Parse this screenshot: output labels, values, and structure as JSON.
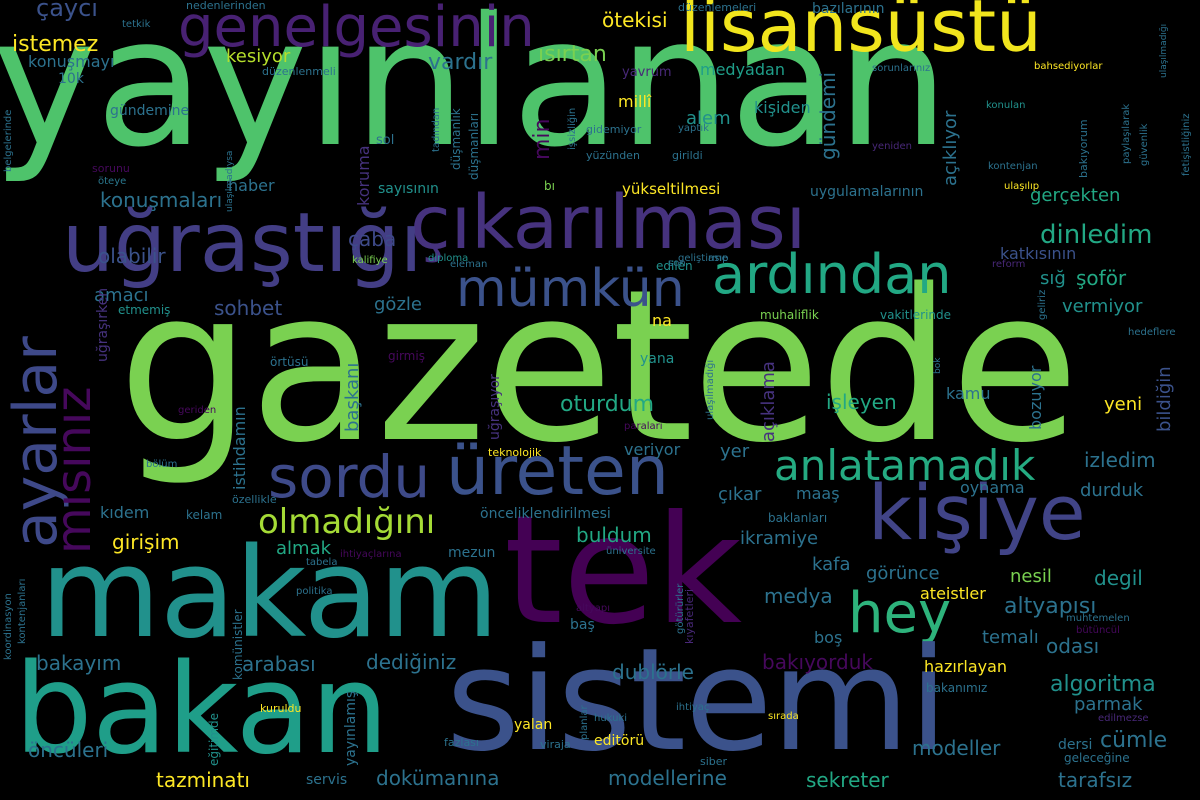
{
  "background": "#000000",
  "words": [
    {
      "text": "yayınlanan",
      "color": "#4ec36b"
    },
    {
      "text": "gazetede",
      "color": "#7ad151"
    },
    {
      "text": "lisansüstü",
      "color": "#f1e51d"
    },
    {
      "text": "genelgesinin",
      "color": "#482173"
    },
    {
      "text": "çıkarılması",
      "color": "#46327e"
    },
    {
      "text": "uğraştığı",
      "color": "#433e85"
    },
    {
      "text": "mümkün",
      "color": "#3b528b"
    },
    {
      "text": "ardından",
      "color": "#22a884"
    },
    {
      "text": "kişiye",
      "color": "#414487"
    },
    {
      "text": "sordu",
      "color": "#3e4a89"
    },
    {
      "text": "üreten",
      "color": "#3b528b"
    },
    {
      "text": "anlatamadık",
      "color": "#25ab82"
    },
    {
      "text": "olmadığını",
      "color": "#a5db36"
    },
    {
      "text": "makam",
      "color": "#21918c"
    },
    {
      "text": "tek",
      "color": "#440154"
    },
    {
      "text": "hey",
      "color": "#2eb37c"
    },
    {
      "text": "bakan",
      "color": "#1f9e89"
    },
    {
      "text": "sistemi",
      "color": "#3b528b"
    },
    {
      "text": "ayarlar",
      "color": "#3e4989"
    },
    {
      "text": "mısınız",
      "color": "#46085c"
    },
    {
      "text": "çaycı",
      "color": "#3b528b"
    },
    {
      "text": "istemez",
      "color": "#fde725"
    },
    {
      "text": "konuşmayı",
      "color": "#2c728e"
    },
    {
      "text": "10k",
      "color": "#2c728e"
    },
    {
      "text": "gündemine",
      "color": "#2c728e"
    },
    {
      "text": "ulaşılmadıysa",
      "color": "#2c728e"
    },
    {
      "text": "sorunu",
      "color": "#46085c"
    },
    {
      "text": "öteye",
      "color": "#2a788e"
    },
    {
      "text": "haber",
      "color": "#2c728e"
    },
    {
      "text": "konuşmaları",
      "color": "#2c728e"
    },
    {
      "text": "çaba",
      "color": "#3e4a89"
    },
    {
      "text": "olabilir",
      "color": "#3b528b"
    },
    {
      "text": "amacı",
      "color": "#2c728e"
    },
    {
      "text": "sohbet",
      "color": "#3b528b"
    },
    {
      "text": "gözle",
      "color": "#2c728e"
    },
    {
      "text": "etmemiş",
      "color": "#21918c"
    },
    {
      "text": "kesiyor",
      "color": "#b5de2b"
    },
    {
      "text": "vardır",
      "color": "#2c728e"
    },
    {
      "text": "ısırtan",
      "color": "#7ad151"
    },
    {
      "text": "ötekisi",
      "color": "#fde725"
    },
    {
      "text": "yavrum",
      "color": "#482878"
    },
    {
      "text": "medyadan",
      "color": "#1f9e89"
    },
    {
      "text": "millî",
      "color": "#fde725"
    },
    {
      "text": "alem",
      "color": "#21918c"
    },
    {
      "text": "kişiden",
      "color": "#21918c"
    },
    {
      "text": "gündemi",
      "color": "#2c728e"
    },
    {
      "text": "açıklıyor",
      "color": "#2c728e"
    },
    {
      "text": "bazılarının",
      "color": "#2c728e"
    },
    {
      "text": "sorunlarınız",
      "color": "#2c728e"
    },
    {
      "text": "bahsediyorlar",
      "color": "#fde725"
    },
    {
      "text": "ulaşılmadığı",
      "color": "#2c728e"
    },
    {
      "text": "fetişistliğiniz",
      "color": "#2c728e"
    },
    {
      "text": "konulan",
      "color": "#21918c"
    },
    {
      "text": "paylaşılarak",
      "color": "#2c728e"
    },
    {
      "text": "güvenlik",
      "color": "#2c728e"
    },
    {
      "text": "bakıyorum",
      "color": "#2c728e"
    },
    {
      "text": "yeniden",
      "color": "#482878"
    },
    {
      "text": "kontenjan",
      "color": "#2c728e"
    },
    {
      "text": "ulaşılıp",
      "color": "#fde725"
    },
    {
      "text": "reform",
      "color": "#482878"
    },
    {
      "text": "düzenlemeleri",
      "color": "#2c728e"
    },
    {
      "text": "nedenlerinden",
      "color": "#2c728e"
    },
    {
      "text": "tetkik",
      "color": "#2c728e"
    },
    {
      "text": "düzenlenmeli",
      "color": "#2c728e"
    },
    {
      "text": "tadından",
      "color": "#2c728e"
    },
    {
      "text": "düşmanlık",
      "color": "#2c728e"
    },
    {
      "text": "düşmanları",
      "color": "#2c728e"
    },
    {
      "text": "işsizliğin",
      "color": "#2c728e"
    },
    {
      "text": "gidemiyor",
      "color": "#2c728e"
    },
    {
      "text": "yaptık",
      "color": "#2c728e"
    },
    {
      "text": "yüzünden",
      "color": "#2c728e"
    },
    {
      "text": "girildi",
      "color": "#2c728e"
    },
    {
      "text": "min",
      "color": "#46085c"
    },
    {
      "text": "sol",
      "color": "#2c728e"
    },
    {
      "text": "koruma",
      "color": "#46327e"
    },
    {
      "text": "sayısının",
      "color": "#21918c"
    },
    {
      "text": "bı",
      "color": "#7ad151"
    },
    {
      "text": "yükseltilmesi",
      "color": "#fde725"
    },
    {
      "text": "uygulamalarının",
      "color": "#2c728e"
    },
    {
      "text": "gerçekten",
      "color": "#22a884"
    },
    {
      "text": "dinledim",
      "color": "#22a884"
    },
    {
      "text": "katkısının",
      "color": "#3b528b"
    },
    {
      "text": "sığ",
      "color": "#21918c"
    },
    {
      "text": "şoför",
      "color": "#22a884"
    },
    {
      "text": "vermiyor",
      "color": "#21918c"
    },
    {
      "text": "bildiğin",
      "color": "#3b528b"
    },
    {
      "text": "muhaliflik",
      "color": "#7ad151"
    },
    {
      "text": "vakitlerinde",
      "color": "#21918c"
    },
    {
      "text": "geliriz",
      "color": "#2c728e"
    },
    {
      "text": "geliştirme",
      "color": "#2c728e"
    },
    {
      "text": "edilen",
      "color": "#21918c"
    },
    {
      "text": "eleman",
      "color": "#2c728e"
    },
    {
      "text": "diploma",
      "color": "#21918c"
    },
    {
      "text": "son",
      "color": "#2c728e"
    },
    {
      "text": "asıp",
      "color": "#2c728e"
    },
    {
      "text": "kalifiye",
      "color": "#7ad151"
    },
    {
      "text": "na",
      "color": "#fde725"
    },
    {
      "text": "başkanı",
      "color": "#2c728e"
    },
    {
      "text": "örtüsü",
      "color": "#2c728e"
    },
    {
      "text": "girmiş",
      "color": "#46085c"
    },
    {
      "text": "uğraşırken",
      "color": "#46327e"
    },
    {
      "text": "uğraşıyor",
      "color": "#46327e"
    },
    {
      "text": "istihdamın",
      "color": "#2c728e"
    },
    {
      "text": "özellikle",
      "color": "#2c728e"
    },
    {
      "text": "geriden",
      "color": "#46085c"
    },
    {
      "text": "bölüm",
      "color": "#2c728e"
    },
    {
      "text": "teknolojik",
      "color": "#fde725"
    },
    {
      "text": "paraları",
      "color": "#46085c"
    },
    {
      "text": "ulaşılmadığı",
      "color": "#2c728e"
    },
    {
      "text": "yana",
      "color": "#21918c"
    },
    {
      "text": "açıklama",
      "color": "#46327e"
    },
    {
      "text": "oturdum",
      "color": "#22a884"
    },
    {
      "text": "veriyor",
      "color": "#2c728e"
    },
    {
      "text": "yer",
      "color": "#2c728e"
    },
    {
      "text": "işleyen",
      "color": "#22a884"
    },
    {
      "text": "kamu",
      "color": "#2c728e"
    },
    {
      "text": "bok",
      "color": "#2c728e"
    },
    {
      "text": "bozuyor",
      "color": "#2c728e"
    },
    {
      "text": "yeni",
      "color": "#fde725"
    },
    {
      "text": "hedeflere",
      "color": "#2c728e"
    },
    {
      "text": "izledim",
      "color": "#2c728e"
    },
    {
      "text": "oynama",
      "color": "#2c728e"
    },
    {
      "text": "durduk",
      "color": "#2c728e"
    },
    {
      "text": "kıdem",
      "color": "#2c728e"
    },
    {
      "text": "kelam",
      "color": "#2c728e"
    },
    {
      "text": "girişim",
      "color": "#fde725"
    },
    {
      "text": "almak",
      "color": "#22a884"
    },
    {
      "text": "önceliklendirilmesi",
      "color": "#2c728e"
    },
    {
      "text": "buldum",
      "color": "#22a884"
    },
    {
      "text": "ikramiye",
      "color": "#2c728e"
    },
    {
      "text": "maaş",
      "color": "#2c728e"
    },
    {
      "text": "çıkar",
      "color": "#2c728e"
    },
    {
      "text": "baklanları",
      "color": "#2c728e"
    },
    {
      "text": "kafa",
      "color": "#2c728e"
    },
    {
      "text": "görünce",
      "color": "#2c728e"
    },
    {
      "text": "nesil",
      "color": "#7ad151"
    },
    {
      "text": "degil",
      "color": "#21918c"
    },
    {
      "text": "altyapısı",
      "color": "#2c728e"
    },
    {
      "text": "ihtiyaçlarına",
      "color": "#46085c"
    },
    {
      "text": "mezun",
      "color": "#2c728e"
    },
    {
      "text": "üniversite",
      "color": "#2c728e"
    },
    {
      "text": "kıyafetleri",
      "color": "#482878"
    },
    {
      "text": "tabela",
      "color": "#2c728e"
    },
    {
      "text": "koordinasyon",
      "color": "#2c728e"
    },
    {
      "text": "kontenjanları",
      "color": "#2c728e"
    },
    {
      "text": "politika",
      "color": "#2c728e"
    },
    {
      "text": "komünistler",
      "color": "#2c728e"
    },
    {
      "text": "altyapı",
      "color": "#46085c"
    },
    {
      "text": "medya",
      "color": "#2c728e"
    },
    {
      "text": "ateistler",
      "color": "#fde725"
    },
    {
      "text": "muhtemelen",
      "color": "#2c728e"
    },
    {
      "text": "baş",
      "color": "#2c728e"
    },
    {
      "text": "götürürler",
      "color": "#2c728e"
    },
    {
      "text": "bütüncül",
      "color": "#46085c"
    },
    {
      "text": "boş",
      "color": "#2c728e"
    },
    {
      "text": "temalı",
      "color": "#2c728e"
    },
    {
      "text": "odası",
      "color": "#2c728e"
    },
    {
      "text": "bakayım",
      "color": "#2c728e"
    },
    {
      "text": "arabası",
      "color": "#2c728e"
    },
    {
      "text": "dediğiniz",
      "color": "#2c728e"
    },
    {
      "text": "dublörle",
      "color": "#2c728e"
    },
    {
      "text": "bakıyorduk",
      "color": "#46085c"
    },
    {
      "text": "hazırlayan",
      "color": "#fde725"
    },
    {
      "text": "algoritma",
      "color": "#21918c"
    },
    {
      "text": "bakanımız",
      "color": "#2c728e"
    },
    {
      "text": "parmak",
      "color": "#2c728e"
    },
    {
      "text": "eğitimde",
      "color": "#21918c"
    },
    {
      "text": "kuruldu",
      "color": "#fde725"
    },
    {
      "text": "yayınlamış",
      "color": "#2c728e"
    },
    {
      "text": "planlar",
      "color": "#2c728e"
    },
    {
      "text": "ihtiyaç",
      "color": "#2c728e"
    },
    {
      "text": "sırada",
      "color": "#fde725"
    },
    {
      "text": "hukuki",
      "color": "#2c728e"
    },
    {
      "text": "edilmezse",
      "color": "#482878"
    },
    {
      "text": "cümle",
      "color": "#2c728e"
    },
    {
      "text": "dersi",
      "color": "#2c728e"
    },
    {
      "text": "geleceğine",
      "color": "#2c728e"
    },
    {
      "text": "yalan",
      "color": "#fde725"
    },
    {
      "text": "fazlası",
      "color": "#2c728e"
    },
    {
      "text": "viraja",
      "color": "#2c728e"
    },
    {
      "text": "editörü",
      "color": "#fde725"
    },
    {
      "text": "siber",
      "color": "#2c728e"
    },
    {
      "text": "öncüleri",
      "color": "#2c728e"
    },
    {
      "text": "tazminatı",
      "color": "#fde725"
    },
    {
      "text": "servis",
      "color": "#2c728e"
    },
    {
      "text": "dokümanına",
      "color": "#2c728e"
    },
    {
      "text": "modellerine",
      "color": "#2c728e"
    },
    {
      "text": "sekreter",
      "color": "#22a884"
    },
    {
      "text": "modeller",
      "color": "#2c728e"
    },
    {
      "text": "tarafsız",
      "color": "#2c728e"
    },
    {
      "text": "belgelerinde",
      "color": "#2c728e"
    }
  ]
}
